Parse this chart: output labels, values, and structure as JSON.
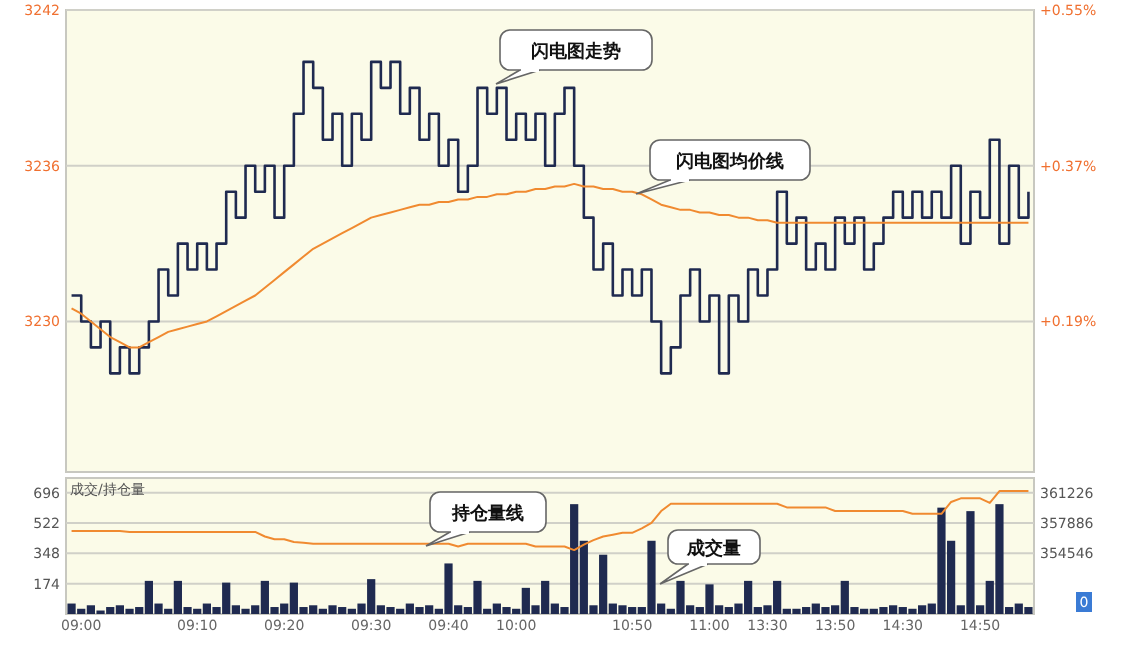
{
  "chart_data": [
    {
      "type": "step",
      "categories": [
        null,
        null,
        null,
        null,
        null,
        null,
        null,
        null,
        null,
        null,
        null,
        null,
        null,
        null,
        null,
        null,
        null,
        null,
        null,
        null,
        null,
        null,
        null,
        null,
        null,
        null,
        null,
        null,
        null,
        null,
        null,
        null,
        null,
        null,
        null,
        null,
        null,
        null,
        null,
        null,
        null,
        null,
        null,
        null,
        null,
        null,
        null,
        null,
        null,
        null,
        null,
        null,
        null,
        null,
        null,
        null,
        null,
        null,
        null,
        null,
        null,
        null,
        null,
        null,
        null,
        null,
        null,
        null,
        null,
        null,
        null,
        null,
        null,
        null,
        null,
        null,
        null,
        null,
        null,
        null,
        null,
        null,
        null,
        null,
        null,
        null,
        null,
        null,
        null,
        null,
        null,
        null,
        null,
        null,
        null,
        null,
        null,
        null,
        null,
        null
      ],
      "series": [
        {
          "color": "#1f2a50",
          "values": [
            3231,
            3230,
            3229,
            3230,
            3228,
            3229,
            3228,
            3229,
            3230,
            3232,
            3231,
            3233,
            3232,
            3233,
            3232,
            3233,
            3235,
            3234,
            3236,
            3235,
            3236,
            3234,
            3236,
            3238,
            3240,
            3239,
            3237,
            3238,
            3236,
            3238,
            3237,
            3240,
            3239,
            3240,
            3238,
            3239,
            3237,
            3238,
            3236,
            3237,
            3235,
            3236,
            3239,
            3238,
            3239,
            3237,
            3238,
            3237,
            3238,
            3236,
            3238,
            3239,
            3236,
            3234,
            3232,
            3233,
            3231,
            3232,
            3231,
            3232,
            3230,
            3228,
            3229,
            3231,
            3232,
            3230,
            3231,
            3228,
            3231,
            3230,
            3232,
            3231,
            3232,
            3235,
            3233,
            3234,
            3232,
            3233,
            3232,
            3234,
            3233,
            3234,
            3232,
            3233,
            3234,
            3235,
            3234,
            3235,
            3234,
            3235,
            3234,
            3236,
            3233,
            3235,
            3234,
            3237,
            3233,
            3236,
            3234,
            3235
          ]
        },
        {
          "type": "line",
          "color": "#f08a30",
          "values": [
            3230.5,
            3230.3,
            3230.0,
            3229.7,
            3229.4,
            3229.2,
            3229.0,
            3229.0,
            3229.2,
            3229.4,
            3229.6,
            3229.7,
            3229.8,
            3229.9,
            3230.0,
            3230.2,
            3230.4,
            3230.6,
            3230.8,
            3231.0,
            3231.3,
            3231.6,
            3231.9,
            3232.2,
            3232.5,
            3232.8,
            3233.0,
            3233.2,
            3233.4,
            3233.6,
            3233.8,
            3234.0,
            3234.1,
            3234.2,
            3234.3,
            3234.4,
            3234.5,
            3234.5,
            3234.6,
            3234.6,
            3234.7,
            3234.7,
            3234.8,
            3234.8,
            3234.9,
            3234.9,
            3235.0,
            3235.0,
            3235.1,
            3235.1,
            3235.2,
            3235.2,
            3235.3,
            3235.2,
            3235.2,
            3235.1,
            3235.1,
            3235.0,
            3235.0,
            3234.9,
            3234.7,
            3234.5,
            3234.4,
            3234.3,
            3234.3,
            3234.2,
            3234.2,
            3234.1,
            3234.1,
            3234.0,
            3234.0,
            3233.9,
            3233.9,
            3233.8,
            3233.8,
            3233.8,
            3233.8,
            3233.8,
            3233.8,
            3233.8,
            3233.8,
            3233.8,
            3233.8,
            3233.8,
            3233.8,
            3233.8,
            3233.8,
            3233.8,
            3233.8,
            3233.8,
            3233.8,
            3233.8,
            3233.8,
            3233.8,
            3233.8,
            3233.8,
            3233.8,
            3233.8,
            3233.8,
            3233.8
          ]
        }
      ],
      "ylim": [
        3224.2,
        3242
      ],
      "yticks": [
        3230,
        3236,
        3242
      ],
      "y2lim": [
        0.016,
        0.55
      ],
      "y2ticks": [
        {
          "value": 0.19,
          "label": "+0.19%"
        },
        {
          "value": 0.37,
          "label": "+0.37%"
        },
        {
          "value": 0.55,
          "label": "+0.55%"
        }
      ],
      "grid": "y",
      "annotations": [
        "闪电图走势",
        "闪电图均价线"
      ]
    },
    {
      "type": "bar",
      "title": "成交/持仓量",
      "categories": [
        null,
        "09:00",
        null,
        null,
        null,
        null,
        null,
        null,
        null,
        null,
        null,
        null,
        null,
        "09:10",
        null,
        null,
        null,
        null,
        null,
        null,
        null,
        null,
        "09:20",
        null,
        null,
        null,
        null,
        null,
        null,
        null,
        null,
        "09:30",
        null,
        null,
        null,
        null,
        null,
        null,
        null,
        "09:40",
        null,
        null,
        null,
        null,
        null,
        null,
        "10:00",
        null,
        null,
        null,
        null,
        null,
        null,
        null,
        null,
        null,
        null,
        null,
        "10:50",
        null,
        null,
        null,
        null,
        null,
        null,
        null,
        "11:00",
        null,
        null,
        null,
        null,
        null,
        "13:30",
        null,
        null,
        null,
        null,
        null,
        null,
        "13:50",
        null,
        null,
        null,
        null,
        null,
        null,
        "14:30",
        null,
        null,
        null,
        null,
        null,
        null,
        null,
        "14:50",
        null,
        null,
        null,
        null,
        null
      ],
      "series": [
        {
          "color": "#1f2a50",
          "values": [
            60,
            30,
            50,
            20,
            40,
            50,
            30,
            40,
            190,
            60,
            30,
            190,
            40,
            30,
            60,
            40,
            180,
            50,
            30,
            50,
            190,
            40,
            60,
            180,
            40,
            50,
            30,
            50,
            40,
            30,
            60,
            200,
            50,
            40,
            30,
            60,
            40,
            50,
            30,
            290,
            50,
            40,
            190,
            30,
            60,
            40,
            30,
            150,
            50,
            190,
            60,
            40,
            630,
            420,
            50,
            340,
            60,
            50,
            40,
            40,
            420,
            60,
            30,
            190,
            50,
            40,
            170,
            50,
            40,
            60,
            190,
            40,
            50,
            190,
            30,
            30,
            40,
            60,
            40,
            50,
            190,
            40,
            30,
            30,
            40,
            50,
            40,
            30,
            50,
            60,
            610,
            420,
            50,
            590,
            50,
            190,
            630,
            40,
            60,
            40
          ]
        },
        {
          "type": "line",
          "axis": "y2",
          "color": "#f08a30",
          "values": [
            357000,
            357000,
            357000,
            357000,
            357000,
            357000,
            356900,
            356900,
            356900,
            356900,
            356900,
            356900,
            356900,
            356900,
            356900,
            356900,
            356900,
            356900,
            356900,
            356900,
            356400,
            356100,
            356100,
            355800,
            355700,
            355600,
            355600,
            355600,
            355600,
            355600,
            355600,
            355600,
            355600,
            355600,
            355600,
            355600,
            355600,
            355600,
            355600,
            355600,
            355300,
            355600,
            355600,
            355600,
            355600,
            355600,
            355600,
            355600,
            355300,
            355300,
            355300,
            355300,
            354900,
            355500,
            356000,
            356400,
            356600,
            356800,
            356800,
            357300,
            357900,
            359200,
            360000,
            360000,
            360000,
            360000,
            360000,
            360000,
            360000,
            360000,
            360000,
            360000,
            360000,
            360000,
            359600,
            359600,
            359600,
            359600,
            359600,
            359200,
            359200,
            359200,
            359200,
            359200,
            359200,
            359200,
            359200,
            358900,
            358900,
            358900,
            358900,
            360200,
            360600,
            360600,
            360600,
            360100,
            361400,
            361400,
            361400,
            361400
          ]
        }
      ],
      "ylim": [
        0,
        780
      ],
      "yticks": [
        174,
        348,
        522,
        696
      ],
      "y2lim": [
        347866,
        362838
      ],
      "y2ticks": [
        {
          "value": 354546,
          "label": "354546"
        },
        {
          "value": 357886,
          "label": "357886"
        },
        {
          "value": 361226,
          "label": "361226"
        }
      ],
      "grid": "y",
      "annotations": [
        "持仓量线",
        "成交量",
        "0"
      ]
    }
  ]
}
